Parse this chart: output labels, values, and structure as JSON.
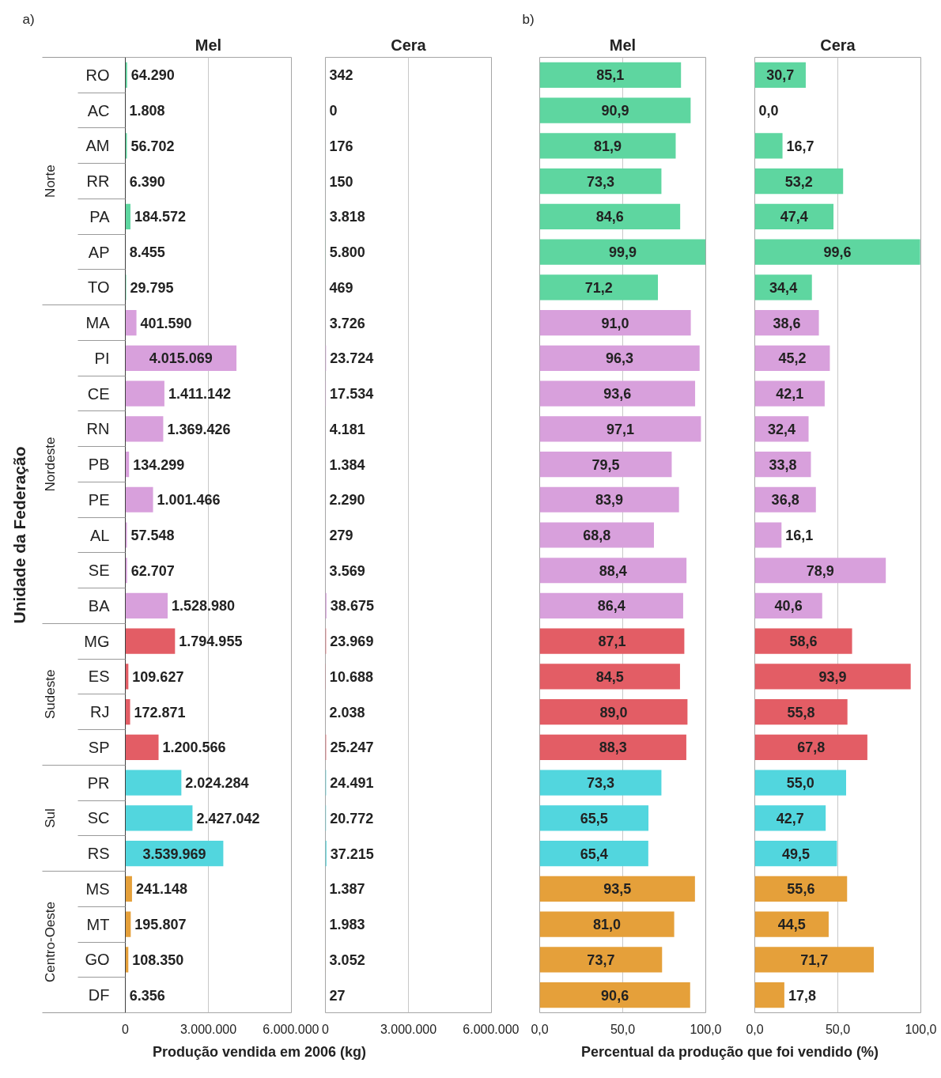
{
  "chart_data": [
    {
      "type": "bar",
      "orientation": "horizontal",
      "title": "Mel",
      "ylabel": "Unidade da Federação",
      "xlabel": "Produção vendida em 2006 (kg)",
      "annotations": [
        "a)",
        "Norte",
        "Nordeste",
        "Sudeste",
        "Sul",
        "Centro-Oeste"
      ],
      "categories": [
        "RO",
        "AC",
        "AM",
        "RR",
        "PA",
        "AP",
        "TO",
        "MA",
        "PI",
        "CE",
        "RN",
        "PB",
        "PE",
        "AL",
        "SE",
        "BA",
        "MG",
        "ES",
        "RJ",
        "SP",
        "PR",
        "SC",
        "RS",
        "MS",
        "MT",
        "GO",
        "DF"
      ],
      "values": [
        64290,
        1808,
        56702,
        6390,
        184572,
        8455,
        29795,
        401590,
        4015069,
        1411142,
        1369426,
        134299,
        1001466,
        57548,
        62707,
        1528980,
        1794955,
        109627,
        172871,
        1200566,
        2024284,
        2427042,
        3539969,
        241148,
        195807,
        108350,
        6356
      ],
      "value_labels": [
        "64.290",
        "1.808",
        "56.702",
        "6.390",
        "184.572",
        "8.455",
        "29.795",
        "401.590",
        "4.015.069",
        "1.411.142",
        "1.369.426",
        "134.299",
        "1.001.466",
        "57.548",
        "62.707",
        "1.528.980",
        "1.794.955",
        "109.627",
        "172.871",
        "1.200.566",
        "2.024.284",
        "2.427.042",
        "3.539.969",
        "241.148",
        "195.807",
        "108.350",
        "6.356"
      ],
      "colors": [
        "#5ed6a0",
        "#5ed6a0",
        "#5ed6a0",
        "#5ed6a0",
        "#5ed6a0",
        "#5ed6a0",
        "#5ed6a0",
        "#d8a0dc",
        "#d8a0dc",
        "#d8a0dc",
        "#d8a0dc",
        "#d8a0dc",
        "#d8a0dc",
        "#d8a0dc",
        "#d8a0dc",
        "#d8a0dc",
        "#e35d65",
        "#e35d65",
        "#e35d65",
        "#e35d65",
        "#52d6de",
        "#52d6de",
        "#52d6de",
        "#e5a03a",
        "#e5a03a",
        "#e5a03a",
        "#e5a03a"
      ],
      "xlim": [
        0,
        6000000
      ],
      "xticks": [
        0,
        {
          "value": 3000000,
          "label": "3.000.000"
        },
        {
          "value": 6000000,
          "label": "6.000.000"
        }
      ],
      "grid": "x"
    },
    {
      "type": "bar",
      "orientation": "horizontal",
      "title": "Cera",
      "tick_labels": "x",
      "categories": [
        null,
        null,
        null,
        null,
        null,
        null,
        null,
        null,
        null,
        null,
        null,
        null,
        null,
        null,
        null,
        null,
        null,
        null,
        null,
        null,
        null,
        null,
        null,
        null,
        null,
        null,
        null
      ],
      "values": [
        342,
        0,
        176,
        150,
        3818,
        5800,
        469,
        3726,
        23724,
        17534,
        4181,
        1384,
        2290,
        279,
        3569,
        38675,
        23969,
        10688,
        2038,
        25247,
        24491,
        20772,
        37215,
        1387,
        1983,
        3052,
        27
      ],
      "value_labels": [
        "342",
        "0",
        "176",
        "150",
        "3.818",
        "5.800",
        "469",
        "3.726",
        "23.724",
        "17.534",
        "4.181",
        "1.384",
        "2.290",
        "279",
        "3.569",
        "38.675",
        "23.969",
        "10.688",
        "2.038",
        "25.247",
        "24.491",
        "20.772",
        "37.215",
        "1.387",
        "1.983",
        "3.052",
        "27"
      ],
      "colors": [
        "#5ed6a0",
        "#5ed6a0",
        "#5ed6a0",
        "#5ed6a0",
        "#5ed6a0",
        "#5ed6a0",
        "#5ed6a0",
        "#d8a0dc",
        "#d8a0dc",
        "#d8a0dc",
        "#d8a0dc",
        "#d8a0dc",
        "#d8a0dc",
        "#d8a0dc",
        "#d8a0dc",
        "#d8a0dc",
        "#e35d65",
        "#e35d65",
        "#e35d65",
        "#e35d65",
        "#52d6de",
        "#52d6de",
        "#52d6de",
        "#e5a03a",
        "#e5a03a",
        "#e5a03a",
        "#e5a03a"
      ],
      "xlim": [
        0,
        6000000
      ],
      "xticks": [
        0,
        {
          "value": 3000000,
          "label": "3.000.000"
        },
        {
          "value": 6000000,
          "label": "6.000.000"
        }
      ],
      "grid": "x"
    },
    {
      "type": "bar",
      "orientation": "horizontal",
      "title": "Mel",
      "tick_labels": "x",
      "xlabel": "Percentual da produção que foi vendido (%)",
      "annotations": [
        "b)"
      ],
      "categories": [
        null,
        null,
        null,
        null,
        null,
        null,
        null,
        null,
        null,
        null,
        null,
        null,
        null,
        null,
        null,
        null,
        null,
        null,
        null,
        null,
        null,
        null,
        null,
        null,
        null,
        null,
        null
      ],
      "values": [
        85.1,
        90.9,
        81.9,
        73.3,
        84.6,
        99.9,
        71.2,
        91.0,
        96.3,
        93.6,
        97.1,
        79.5,
        83.9,
        68.8,
        88.4,
        86.4,
        87.1,
        84.5,
        89.0,
        88.3,
        73.3,
        65.5,
        65.4,
        93.5,
        81.0,
        73.7,
        90.6
      ],
      "value_labels": [
        "85,1",
        "90,9",
        "81,9",
        "73,3",
        "84,6",
        "99,9",
        "71,2",
        "91,0",
        "96,3",
        "93,6",
        "97,1",
        "79,5",
        "83,9",
        "68,8",
        "88,4",
        "86,4",
        "87,1",
        "84,5",
        "89,0",
        "88,3",
        "73,3",
        "65,5",
        "65,4",
        "93,5",
        "81,0",
        "73,7",
        "90,6"
      ],
      "colors": [
        "#5ed6a0",
        "#5ed6a0",
        "#5ed6a0",
        "#5ed6a0",
        "#5ed6a0",
        "#5ed6a0",
        "#5ed6a0",
        "#d8a0dc",
        "#d8a0dc",
        "#d8a0dc",
        "#d8a0dc",
        "#d8a0dc",
        "#d8a0dc",
        "#d8a0dc",
        "#d8a0dc",
        "#d8a0dc",
        "#e35d65",
        "#e35d65",
        "#e35d65",
        "#e35d65",
        "#52d6de",
        "#52d6de",
        "#52d6de",
        "#e5a03a",
        "#e5a03a",
        "#e5a03a",
        "#e5a03a"
      ],
      "xlim": [
        0,
        100
      ],
      "xticks": [
        {
          "value": 0,
          "label": "0,0"
        },
        {
          "value": 50,
          "label": "50,0"
        },
        {
          "value": 100,
          "label": "100,0"
        }
      ],
      "grid": "x"
    },
    {
      "type": "bar",
      "orientation": "horizontal",
      "title": "Cera",
      "tick_labels": "x",
      "categories": [
        null,
        null,
        null,
        null,
        null,
        null,
        null,
        null,
        null,
        null,
        null,
        null,
        null,
        null,
        null,
        null,
        null,
        null,
        null,
        null,
        null,
        null,
        null,
        null,
        null,
        null,
        null
      ],
      "values": [
        30.7,
        0.0,
        16.7,
        53.2,
        47.4,
        99.6,
        34.4,
        38.6,
        45.2,
        42.1,
        32.4,
        33.8,
        36.8,
        16.1,
        78.9,
        40.6,
        58.6,
        93.9,
        55.8,
        67.8,
        55.0,
        42.7,
        49.5,
        55.6,
        44.5,
        71.7,
        17.8
      ],
      "value_labels": [
        "30,7",
        "0,0",
        "16,7",
        "53,2",
        "47,4",
        "99,6",
        "34,4",
        "38,6",
        "45,2",
        "42,1",
        "32,4",
        "33,8",
        "36,8",
        "16,1",
        "78,9",
        "40,6",
        "58,6",
        "93,9",
        "55,8",
        "67,8",
        "55,0",
        "42,7",
        "49,5",
        "55,6",
        "44,5",
        "71,7",
        "17,8"
      ],
      "colors": [
        "#5ed6a0",
        "#5ed6a0",
        "#5ed6a0",
        "#5ed6a0",
        "#5ed6a0",
        "#5ed6a0",
        "#5ed6a0",
        "#d8a0dc",
        "#d8a0dc",
        "#d8a0dc",
        "#d8a0dc",
        "#d8a0dc",
        "#d8a0dc",
        "#d8a0dc",
        "#d8a0dc",
        "#d8a0dc",
        "#e35d65",
        "#e35d65",
        "#e35d65",
        "#e35d65",
        "#52d6de",
        "#52d6de",
        "#52d6de",
        "#e5a03a",
        "#e5a03a",
        "#e5a03a",
        "#e5a03a"
      ],
      "xlim": [
        0,
        100
      ],
      "xticks": [
        {
          "value": 0,
          "label": "0,0"
        },
        {
          "value": 50,
          "label": "50,0"
        },
        {
          "value": 100,
          "label": "100,0"
        }
      ],
      "grid": "x"
    }
  ]
}
